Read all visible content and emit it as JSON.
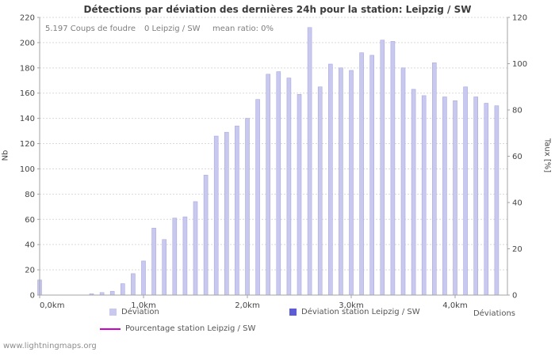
{
  "page": {
    "watermark": "www.lightningmaps.org"
  },
  "chart_data": {
    "type": "bar",
    "title": "Détections par déviation des dernières 24h pour la station: Leipzig / SW",
    "annotations": {
      "strikes": "5.197 Coups de foudre",
      "station": "0 Leipzig / SW",
      "mean_ratio": "mean ratio: 0%"
    },
    "xlabel": "Déviations",
    "ylabel_left": "Nb",
    "ylabel_right": "Taux [%]",
    "ylim_left": [
      0,
      220
    ],
    "ylim_right": [
      0,
      120
    ],
    "grid": true,
    "legend_position": "bottom",
    "y_ticks_left": [
      0,
      20,
      40,
      60,
      80,
      100,
      120,
      140,
      160,
      180,
      200,
      220
    ],
    "y_ticks_right": [
      0,
      20,
      40,
      60,
      80,
      100,
      120
    ],
    "x_tick_km": [
      0,
      1,
      2,
      3,
      4
    ],
    "x_tick_labels": [
      "0,0km",
      "1,0km",
      "2,0km",
      "3,0km",
      "4,0km"
    ],
    "x_km": [
      0,
      0.1,
      0.2,
      0.3,
      0.4,
      0.5,
      0.6,
      0.7,
      0.8,
      0.9,
      1.0,
      1.1,
      1.2,
      1.3,
      1.4,
      1.5,
      1.6,
      1.7,
      1.8,
      1.9,
      2.0,
      2.1,
      2.2,
      2.3,
      2.4,
      2.5,
      2.6,
      2.7,
      2.8,
      2.9,
      3.0,
      3.1,
      3.2,
      3.3,
      3.4,
      3.5,
      3.6,
      3.7,
      3.8,
      3.9,
      4.0,
      4.1,
      4.2,
      4.3,
      4.4
    ],
    "series": [
      {
        "name": "Déviation",
        "values": [
          12,
          0,
          0,
          0,
          0,
          1,
          2,
          3,
          9,
          17,
          27,
          53,
          44,
          61,
          62,
          74,
          95,
          126,
          129,
          134,
          140,
          155,
          175,
          177,
          172,
          159,
          212,
          165,
          183,
          180,
          178,
          192,
          190,
          202,
          201,
          180,
          163,
          158,
          184,
          157,
          154,
          165,
          157,
          152,
          150
        ]
      },
      {
        "name": "Déviation station Leipzig / SW",
        "values_constant": 0
      },
      {
        "name": "Pourcentage station Leipzig / SW",
        "values_constant": 0,
        "axis": "right"
      }
    ],
    "legend": [
      {
        "label": "Déviation",
        "type": "box",
        "color": "#c9c9f0"
      },
      {
        "label": "Déviation station Leipzig / SW",
        "type": "box",
        "color": "#5c5cd6"
      },
      {
        "label": "Pourcentage station Leipzig / SW",
        "type": "line",
        "color": "#cc00cc"
      }
    ],
    "colors": {
      "bar": "#c9c9f0",
      "bar_edge": "#a9a9e0",
      "grid": "#d9d9d9",
      "axis": "#a3a3a3"
    }
  }
}
